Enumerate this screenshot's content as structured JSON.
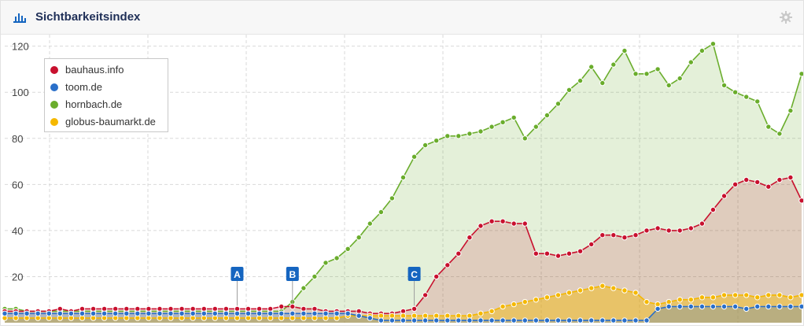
{
  "header": {
    "title": "Sichtbarkeitsindex",
    "chart_icon": "bar-chart-icon",
    "settings_icon": "gear-icon"
  },
  "colors": {
    "bauhaus": "#c8102e",
    "toom": "#2a6fc9",
    "hornbach": "#6aad2c",
    "globus": "#f5b800",
    "grid": "#d9d9d9",
    "event_marker": "#1565c0"
  },
  "legend": [
    {
      "label": "bauhaus.info",
      "color": "#c8102e"
    },
    {
      "label": "toom.de",
      "color": "#2a6fc9"
    },
    {
      "label": "hornbach.de",
      "color": "#6aad2c"
    },
    {
      "label": "globus-baumarkt.de",
      "color": "#f5b800"
    }
  ],
  "chart_data": {
    "type": "area",
    "ylim": [
      0,
      125
    ],
    "yticks": [
      20,
      40,
      60,
      80,
      100,
      120
    ],
    "x_count": 73,
    "grid": true,
    "legend_position": "top-left",
    "events": [
      {
        "label": "A",
        "x": 21
      },
      {
        "label": "B",
        "x": 26
      },
      {
        "label": "C",
        "x": 37
      }
    ],
    "series": [
      {
        "name": "hornbach.de",
        "key": "hornbach",
        "values": [
          6,
          6,
          5,
          5,
          5,
          5,
          5,
          5,
          5,
          5,
          5,
          5,
          5,
          5,
          5,
          5,
          5,
          5,
          5,
          5,
          5,
          5,
          5,
          5,
          5,
          5,
          9,
          15,
          20,
          26,
          28,
          32,
          37,
          43,
          48,
          54,
          63,
          72,
          77,
          79,
          81,
          81,
          82,
          83,
          85,
          87,
          89,
          80,
          85,
          90,
          95,
          101,
          105,
          111,
          104,
          112,
          118,
          108,
          108,
          110,
          103,
          106,
          113,
          118,
          121,
          103,
          100,
          98,
          96,
          85,
          82,
          92,
          108
        ]
      },
      {
        "name": "bauhaus.info",
        "key": "bauhaus",
        "values": [
          5,
          5,
          5,
          5,
          5,
          6,
          5,
          6,
          6,
          6,
          6,
          6,
          6,
          6,
          6,
          6,
          6,
          6,
          6,
          6,
          6,
          6,
          6,
          6,
          6,
          7,
          7,
          6,
          6,
          5,
          5,
          5,
          5,
          4,
          4,
          4,
          5,
          6,
          12,
          20,
          25,
          30,
          37,
          42,
          44,
          44,
          43,
          43,
          30,
          30,
          29,
          30,
          31,
          34,
          38,
          38,
          37,
          38,
          40,
          41,
          40,
          40,
          41,
          43,
          49,
          55,
          60,
          62,
          61,
          59,
          62,
          63,
          53
        ]
      },
      {
        "name": "globus-baumarkt.de",
        "key": "globus",
        "values": [
          2,
          2,
          2,
          2,
          2,
          2,
          2,
          2,
          2,
          2,
          2,
          2,
          2,
          2,
          2,
          2,
          2,
          2,
          2,
          2,
          2,
          2,
          2,
          2,
          2,
          2,
          2,
          2,
          2,
          2,
          2,
          3,
          3,
          3,
          3,
          3,
          3,
          3,
          3,
          3,
          3,
          3,
          3,
          4,
          5,
          7,
          8,
          9,
          10,
          11,
          12,
          13,
          14,
          15,
          16,
          15,
          14,
          13,
          9,
          8,
          9,
          10,
          10,
          11,
          11,
          12,
          12,
          12,
          11,
          12,
          12,
          11,
          12
        ]
      },
      {
        "name": "toom.de",
        "key": "toom",
        "values": [
          4,
          4,
          4,
          4,
          4,
          4,
          4,
          4,
          4,
          4,
          4,
          4,
          4,
          4,
          4,
          4,
          4,
          4,
          4,
          4,
          4,
          4,
          4,
          4,
          4,
          4,
          4,
          4,
          4,
          4,
          4,
          4,
          3,
          2,
          1,
          1,
          1,
          1,
          1,
          1,
          1,
          1,
          1,
          1,
          1,
          1,
          1,
          1,
          1,
          1,
          1,
          1,
          1,
          1,
          1,
          1,
          1,
          1,
          1,
          6,
          7,
          7,
          7,
          7,
          7,
          7,
          7,
          6,
          7,
          7,
          7,
          7,
          7
        ]
      }
    ]
  }
}
